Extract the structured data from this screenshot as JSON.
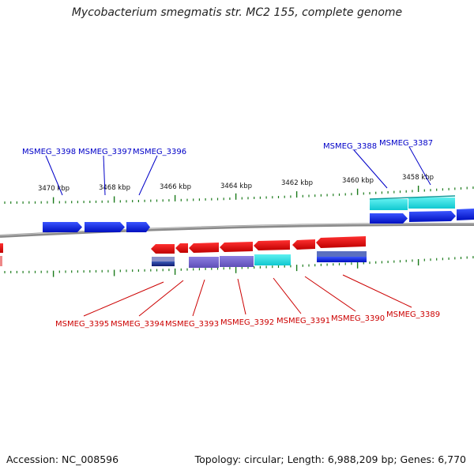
{
  "title": "Mycobacterium smegmatis str. MC2 155, complete genome",
  "footer": {
    "accession": "Accession: NC_008596",
    "summary": "Topology: circular; Length: 6,988,209 bp; Genes: 6,770"
  },
  "colors": {
    "forward_gene": "#0a1ee6",
    "reverse_gene": "#e00000",
    "forward_label": "#0000c8",
    "reverse_label": "#cc0000",
    "tick": "#1a7a1a",
    "backbone": "#8a8a8a",
    "feature_cyan": "#26e0e0",
    "feature_purple": "#7766cc",
    "feature_navy": "#1a2a8c"
  },
  "scale_labels": [
    "3470 kbp",
    "3468 kbp",
    "3466 kbp",
    "3464 kbp",
    "3462 kbp",
    "3460 kbp",
    "3458 kbp"
  ],
  "forward_labels": [
    "MSMEG_3398",
    "MSMEG_3397",
    "MSMEG_3396",
    "MSMEG_3388",
    "MSMEG_3387"
  ],
  "reverse_labels": [
    "MSMEG_3395",
    "MSMEG_3394",
    "MSMEG_3393",
    "MSMEG_3392",
    "MSMEG_3391",
    "MSMEG_3390",
    "MSMEG_3389"
  ]
}
